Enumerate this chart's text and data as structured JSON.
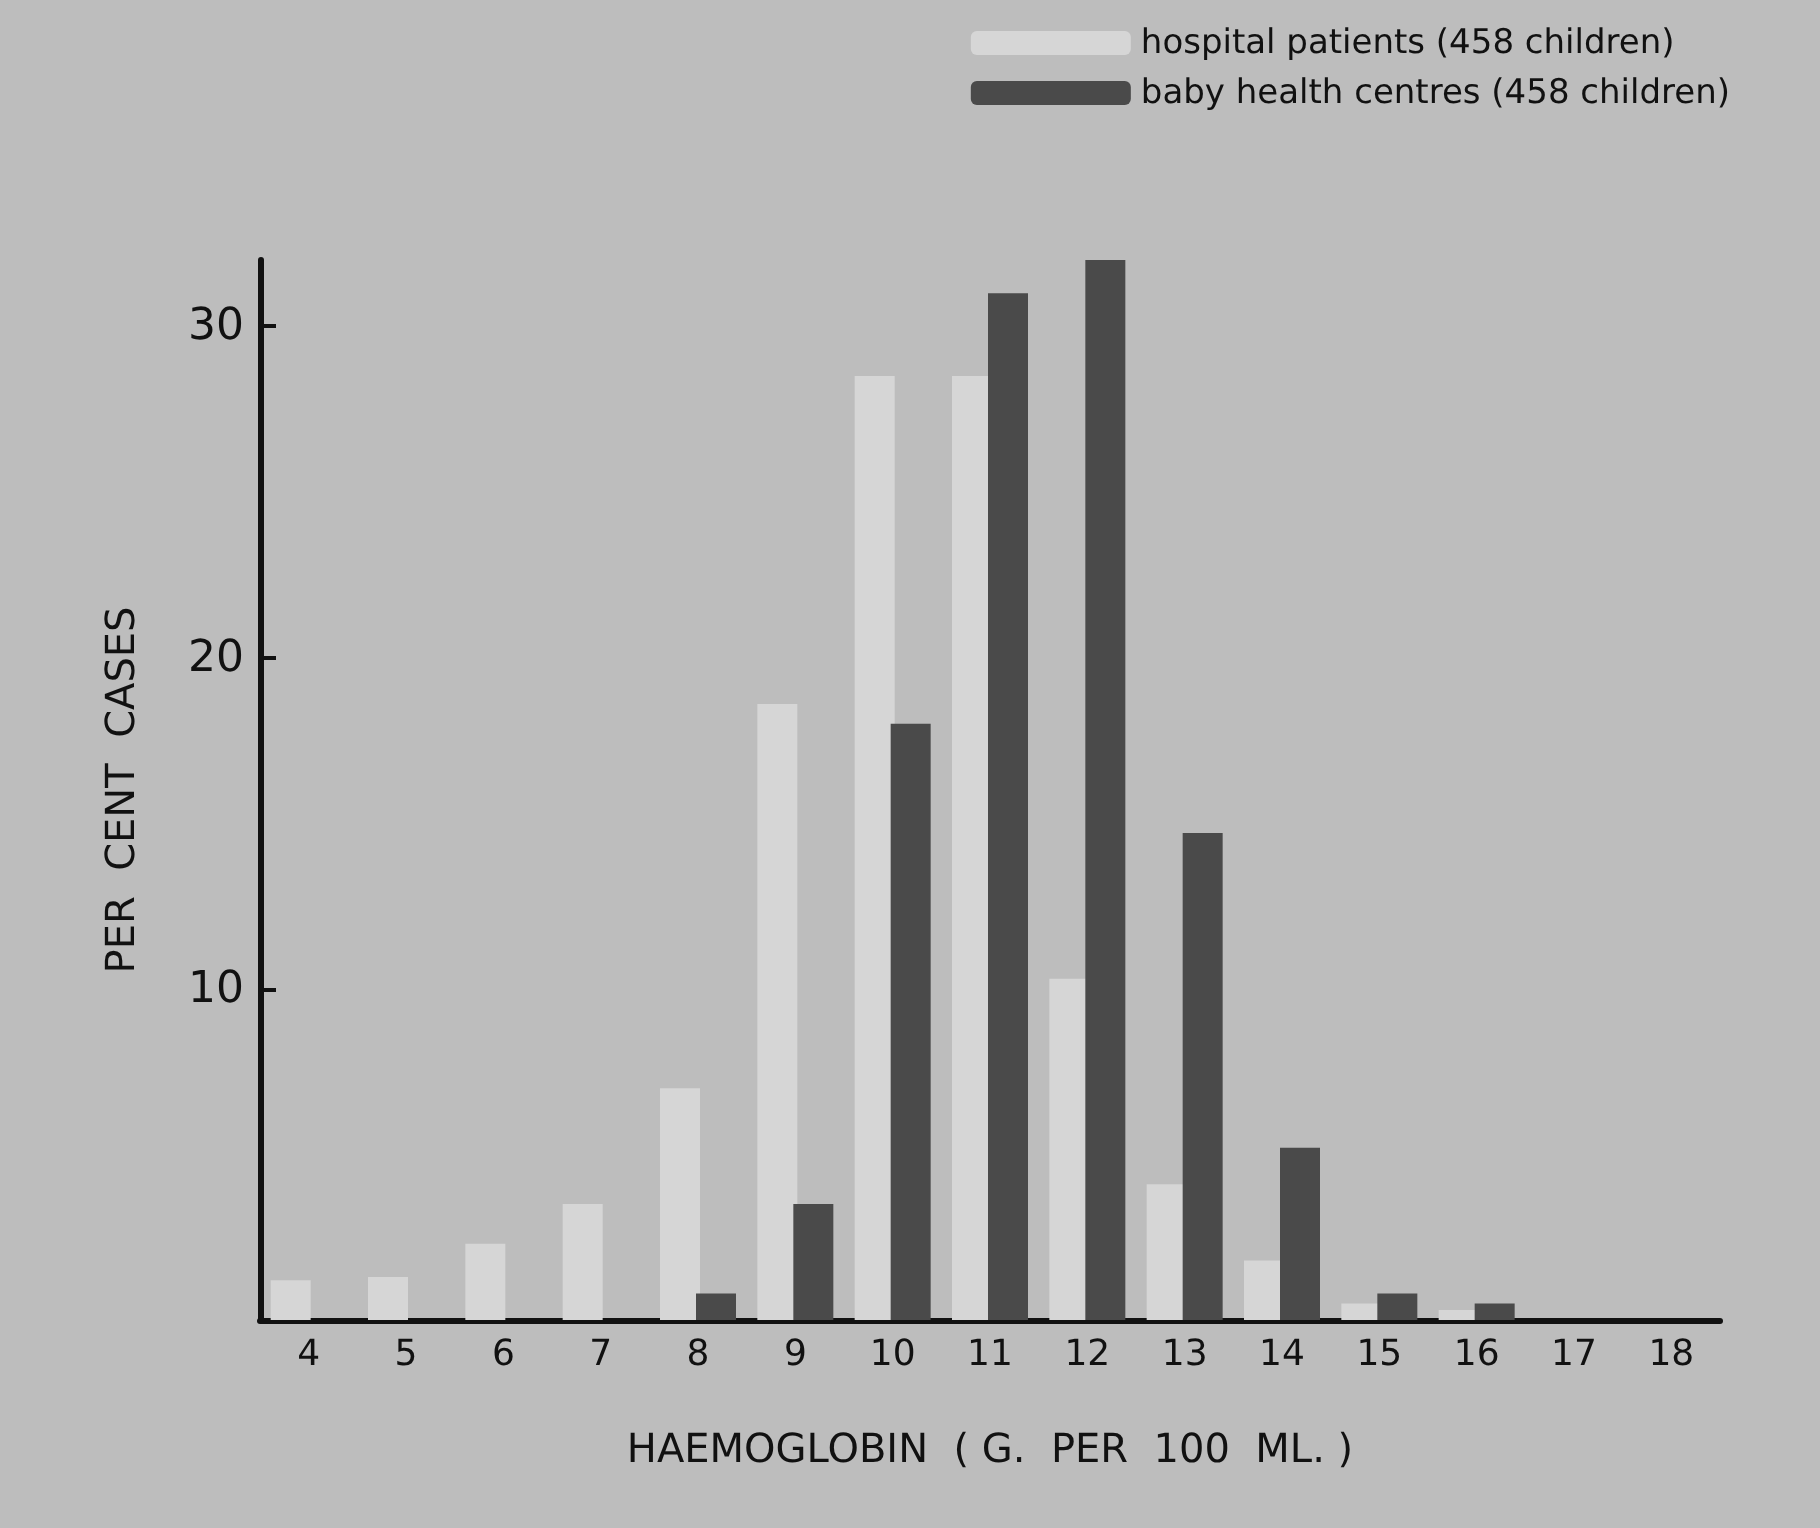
{
  "chart_data": {
    "type": "bar",
    "xlabel": "HAEMOGLOBIN  ( G.  PER  100  ML. )",
    "ylabel": "PER  CENT  CASES",
    "categories": [
      "4",
      "5",
      "6",
      "7",
      "8",
      "9",
      "10",
      "11",
      "12",
      "13",
      "14",
      "15",
      "16",
      "17",
      "18"
    ],
    "series": [
      {
        "name": "hospital patients (458 children)",
        "color": "#d6d6d6",
        "values": [
          1.2,
          1.3,
          2.3,
          3.5,
          7.0,
          18.6,
          28.5,
          28.5,
          10.3,
          4.1,
          1.8,
          0.5,
          0.3,
          null,
          null
        ]
      },
      {
        "name": "baby health centres (458 children)",
        "color": "#4a4a4a",
        "values": [
          null,
          null,
          null,
          null,
          0.8,
          3.5,
          18.0,
          31.0,
          32.0,
          14.7,
          5.2,
          0.8,
          0.5,
          null,
          null
        ]
      }
    ],
    "ylim": [
      0,
      32
    ],
    "yticks": [
      10,
      20,
      30
    ],
    "grid": false,
    "legend": "top right"
  }
}
